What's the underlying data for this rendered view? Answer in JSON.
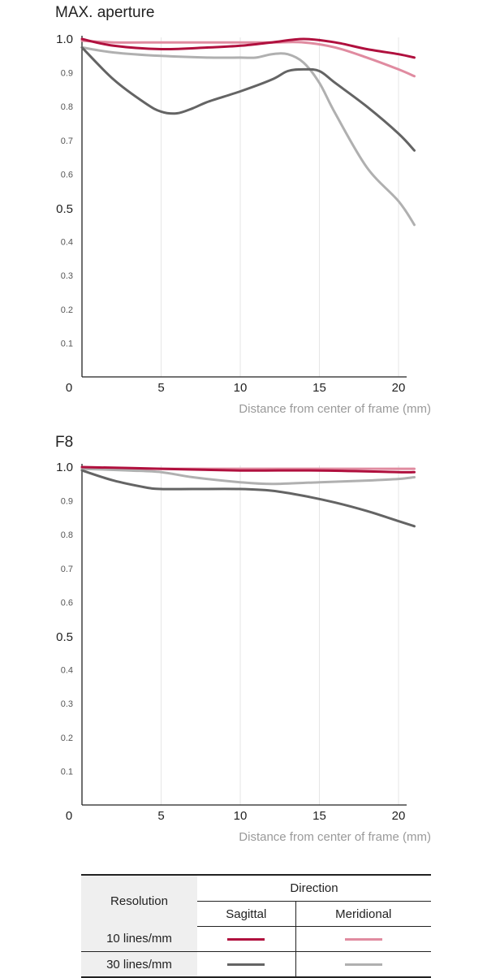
{
  "charts": {
    "max": {
      "title": "MAX. aperture"
    },
    "f8": {
      "title": "F8"
    }
  },
  "axes": {
    "xlabel": "Distance from center of frame (mm)",
    "x_ticks": [
      "0",
      "5",
      "10",
      "15",
      "20"
    ],
    "y_ticks_minor": [
      "0.1",
      "0.2",
      "0.3",
      "0.4",
      "0.6",
      "0.7",
      "0.8",
      "0.9"
    ],
    "y_tick_mid": "0.5",
    "y_tick_top": "1.0"
  },
  "chart_data": [
    {
      "type": "line",
      "title": "MAX. aperture",
      "xlabel": "Distance from center of frame (mm)",
      "ylabel": "",
      "xlim": [
        0,
        21
      ],
      "ylim": [
        0,
        1.0
      ],
      "grid": true,
      "series": [
        {
          "key": "s10",
          "color": "#b0103e",
          "x": [
            0,
            2,
            5,
            8,
            10,
            12,
            14,
            16,
            18,
            20,
            21
          ],
          "values": [
            1.0,
            0.98,
            0.97,
            0.975,
            0.98,
            0.99,
            1.0,
            0.99,
            0.97,
            0.955,
            0.945
          ]
        },
        {
          "key": "m10",
          "color": "#e08ba0",
          "x": [
            0,
            2,
            5,
            8,
            10,
            12,
            14,
            16,
            18,
            20,
            21
          ],
          "values": [
            0.995,
            0.99,
            0.99,
            0.99,
            0.99,
            0.99,
            0.99,
            0.975,
            0.945,
            0.91,
            0.89
          ]
        },
        {
          "key": "s30",
          "color": "#646464",
          "x": [
            0,
            2,
            4,
            5,
            6,
            7,
            8,
            10,
            12,
            13,
            14,
            15,
            16,
            18,
            20,
            21
          ],
          "values": [
            0.975,
            0.88,
            0.81,
            0.785,
            0.78,
            0.795,
            0.815,
            0.845,
            0.88,
            0.905,
            0.91,
            0.905,
            0.87,
            0.8,
            0.72,
            0.67
          ]
        },
        {
          "key": "m30",
          "color": "#b0b0b0",
          "x": [
            0,
            2,
            5,
            8,
            10,
            11,
            12,
            13,
            14,
            15,
            16,
            18,
            20,
            21
          ],
          "values": [
            0.975,
            0.96,
            0.95,
            0.945,
            0.945,
            0.945,
            0.955,
            0.955,
            0.93,
            0.87,
            0.78,
            0.62,
            0.52,
            0.45
          ]
        }
      ]
    },
    {
      "type": "line",
      "title": "F8",
      "xlabel": "Distance from center of frame (mm)",
      "ylabel": "",
      "xlim": [
        0,
        21
      ],
      "ylim": [
        0,
        1.0
      ],
      "grid": true,
      "series": [
        {
          "key": "s10",
          "color": "#b0103e",
          "x": [
            0,
            5,
            10,
            15,
            20,
            21
          ],
          "values": [
            1.0,
            0.995,
            0.99,
            0.99,
            0.985,
            0.985
          ]
        },
        {
          "key": "m10",
          "color": "#e08ba0",
          "x": [
            0,
            5,
            10,
            15,
            20,
            21
          ],
          "values": [
            0.995,
            0.995,
            0.995,
            0.995,
            0.995,
            0.995
          ]
        },
        {
          "key": "s30",
          "color": "#646464",
          "x": [
            0,
            2,
            4,
            5,
            7,
            10,
            12,
            14,
            16,
            18,
            20,
            21
          ],
          "values": [
            0.99,
            0.96,
            0.94,
            0.935,
            0.935,
            0.935,
            0.93,
            0.915,
            0.895,
            0.87,
            0.84,
            0.825
          ]
        },
        {
          "key": "m30",
          "color": "#b0b0b0",
          "x": [
            0,
            3,
            5,
            7,
            10,
            12,
            15,
            18,
            20,
            21
          ],
          "values": [
            0.995,
            0.99,
            0.985,
            0.97,
            0.955,
            0.95,
            0.955,
            0.96,
            0.965,
            0.97
          ]
        }
      ]
    }
  ],
  "legend": {
    "resolution_header": "Resolution",
    "direction_header": "Direction",
    "sagittal": "Sagittal",
    "meridional": "Meridional",
    "row_10": "10 lines/mm",
    "row_30": "30 lines/mm",
    "colors": {
      "s10": "#b0103e",
      "m10": "#e08ba0",
      "s30": "#646464",
      "m30": "#b0b0b0"
    }
  }
}
